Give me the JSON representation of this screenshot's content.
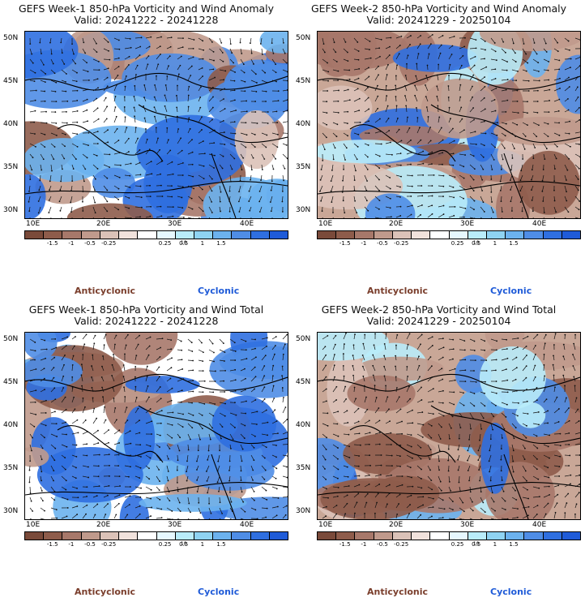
{
  "panels": [
    {
      "title_line1": "GEFS Week-1 850-hPa Vorticity and Wind Anomaly",
      "title_line2": "Valid: 20241222 - 20241228",
      "anomaly": true
    },
    {
      "title_line1": "GEFS Week-2 850-hPa Vorticity and Wind Anomaly",
      "title_line2": "Valid: 20241229 - 20250104",
      "anomaly": true
    },
    {
      "title_line1": "GEFS Week-1 850-hPa Vorticity and Wind Total",
      "title_line2": "Valid: 20241222 - 20241228",
      "anomaly": false
    },
    {
      "title_line1": "GEFS Week-2 850-hPa Vorticity and Wind Total",
      "title_line2": "Valid: 20241229 - 20250104",
      "anomaly": false
    }
  ],
  "lat_labels": [
    "50N",
    "45N",
    "40N",
    "35N",
    "30N"
  ],
  "lon_labels": [
    "10E",
    "20E",
    "30E",
    "40E"
  ],
  "colorbar": {
    "tick_labels": [
      "-1.5",
      "-1",
      "-0.5",
      "-0.25",
      "0.25",
      "0.5",
      "1",
      "1.5"
    ],
    "scale_note": "10",
    "colors": [
      "#7a4a3a",
      "#8e5c4b",
      "#a7786a",
      "#c09a8c",
      "#dbc2b8",
      "#f1e2dc",
      "#ffffff",
      "#e6f8ff",
      "#b9ecfa",
      "#8fd3f2",
      "#6cb2ee",
      "#4f8de6",
      "#2f6fe0",
      "#1f5bd8"
    ]
  },
  "legend": {
    "anticyclonic": "Anticyclonic",
    "cyclonic": "Cyclonic"
  },
  "colors": {
    "cyclonic": "#2f6fe0",
    "anticyclonic": "#a9806c"
  }
}
